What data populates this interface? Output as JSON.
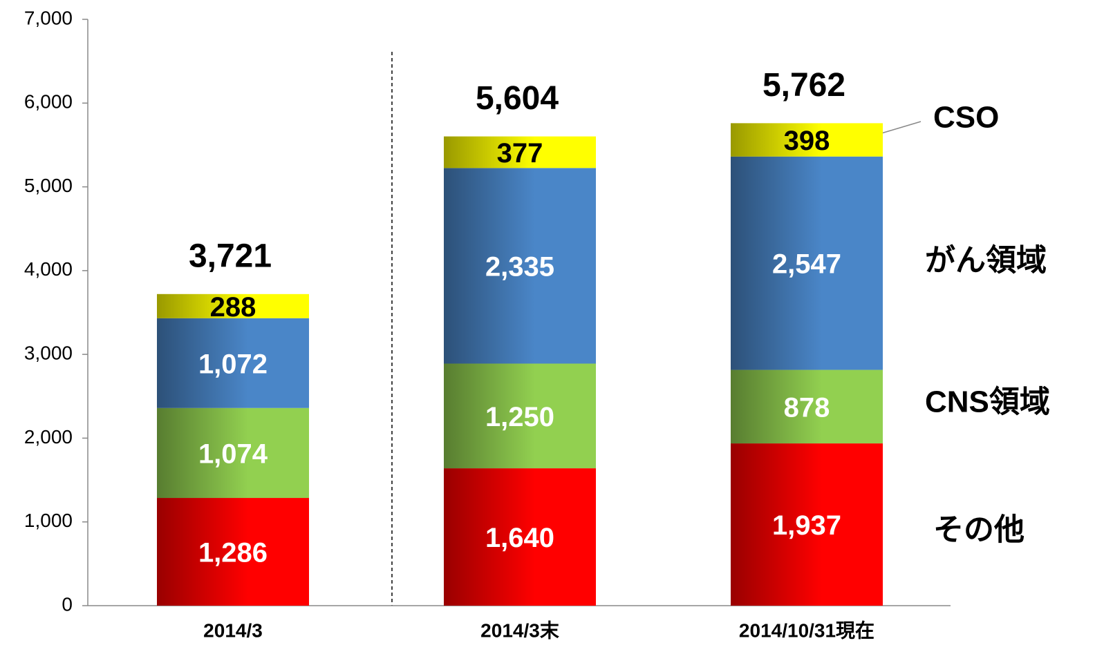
{
  "chart_data": {
    "type": "stacked_bar",
    "categories": [
      "2014/3",
      "2014/3末",
      "2014/10/31現在"
    ],
    "series": [
      {
        "name": "その他",
        "color": "#ff0000",
        "label_color": "#ffffff",
        "values": [
          1286,
          1640,
          1937
        ],
        "value_labels": [
          "1,286",
          "1,640",
          "1,937"
        ]
      },
      {
        "name": "CNS領域",
        "color": "#92d050",
        "label_color": "#ffffff",
        "values": [
          1074,
          1250,
          878
        ],
        "value_labels": [
          "1,074",
          "1,250",
          "878"
        ]
      },
      {
        "name": "がん領域",
        "color": "#4a86c8",
        "label_color": "#ffffff",
        "values": [
          1072,
          2335,
          2547
        ],
        "value_labels": [
          "1,072",
          "2,335",
          "2,547"
        ]
      },
      {
        "name": "CSO",
        "color": "#ffff00",
        "label_color": "#000000",
        "values": [
          288,
          377,
          398
        ],
        "value_labels": [
          "288",
          "377",
          "398"
        ]
      }
    ],
    "totals": [
      3721,
      5604,
      5762
    ],
    "total_labels": [
      "3,721",
      "5,604",
      "5,762"
    ],
    "ylim": [
      0,
      7000
    ],
    "yticks": [
      0,
      {
        "value": 1000,
        "label": "1,000"
      },
      {
        "value": 2000,
        "label": "2,000"
      },
      {
        "value": 3000,
        "label": "3,000"
      },
      {
        "value": 4000,
        "label": "4,000"
      },
      {
        "value": 5000,
        "label": "5,000"
      },
      {
        "value": 6000,
        "label": "6,000"
      },
      {
        "value": 7000,
        "label": "7,000"
      }
    ],
    "grid": false
  }
}
